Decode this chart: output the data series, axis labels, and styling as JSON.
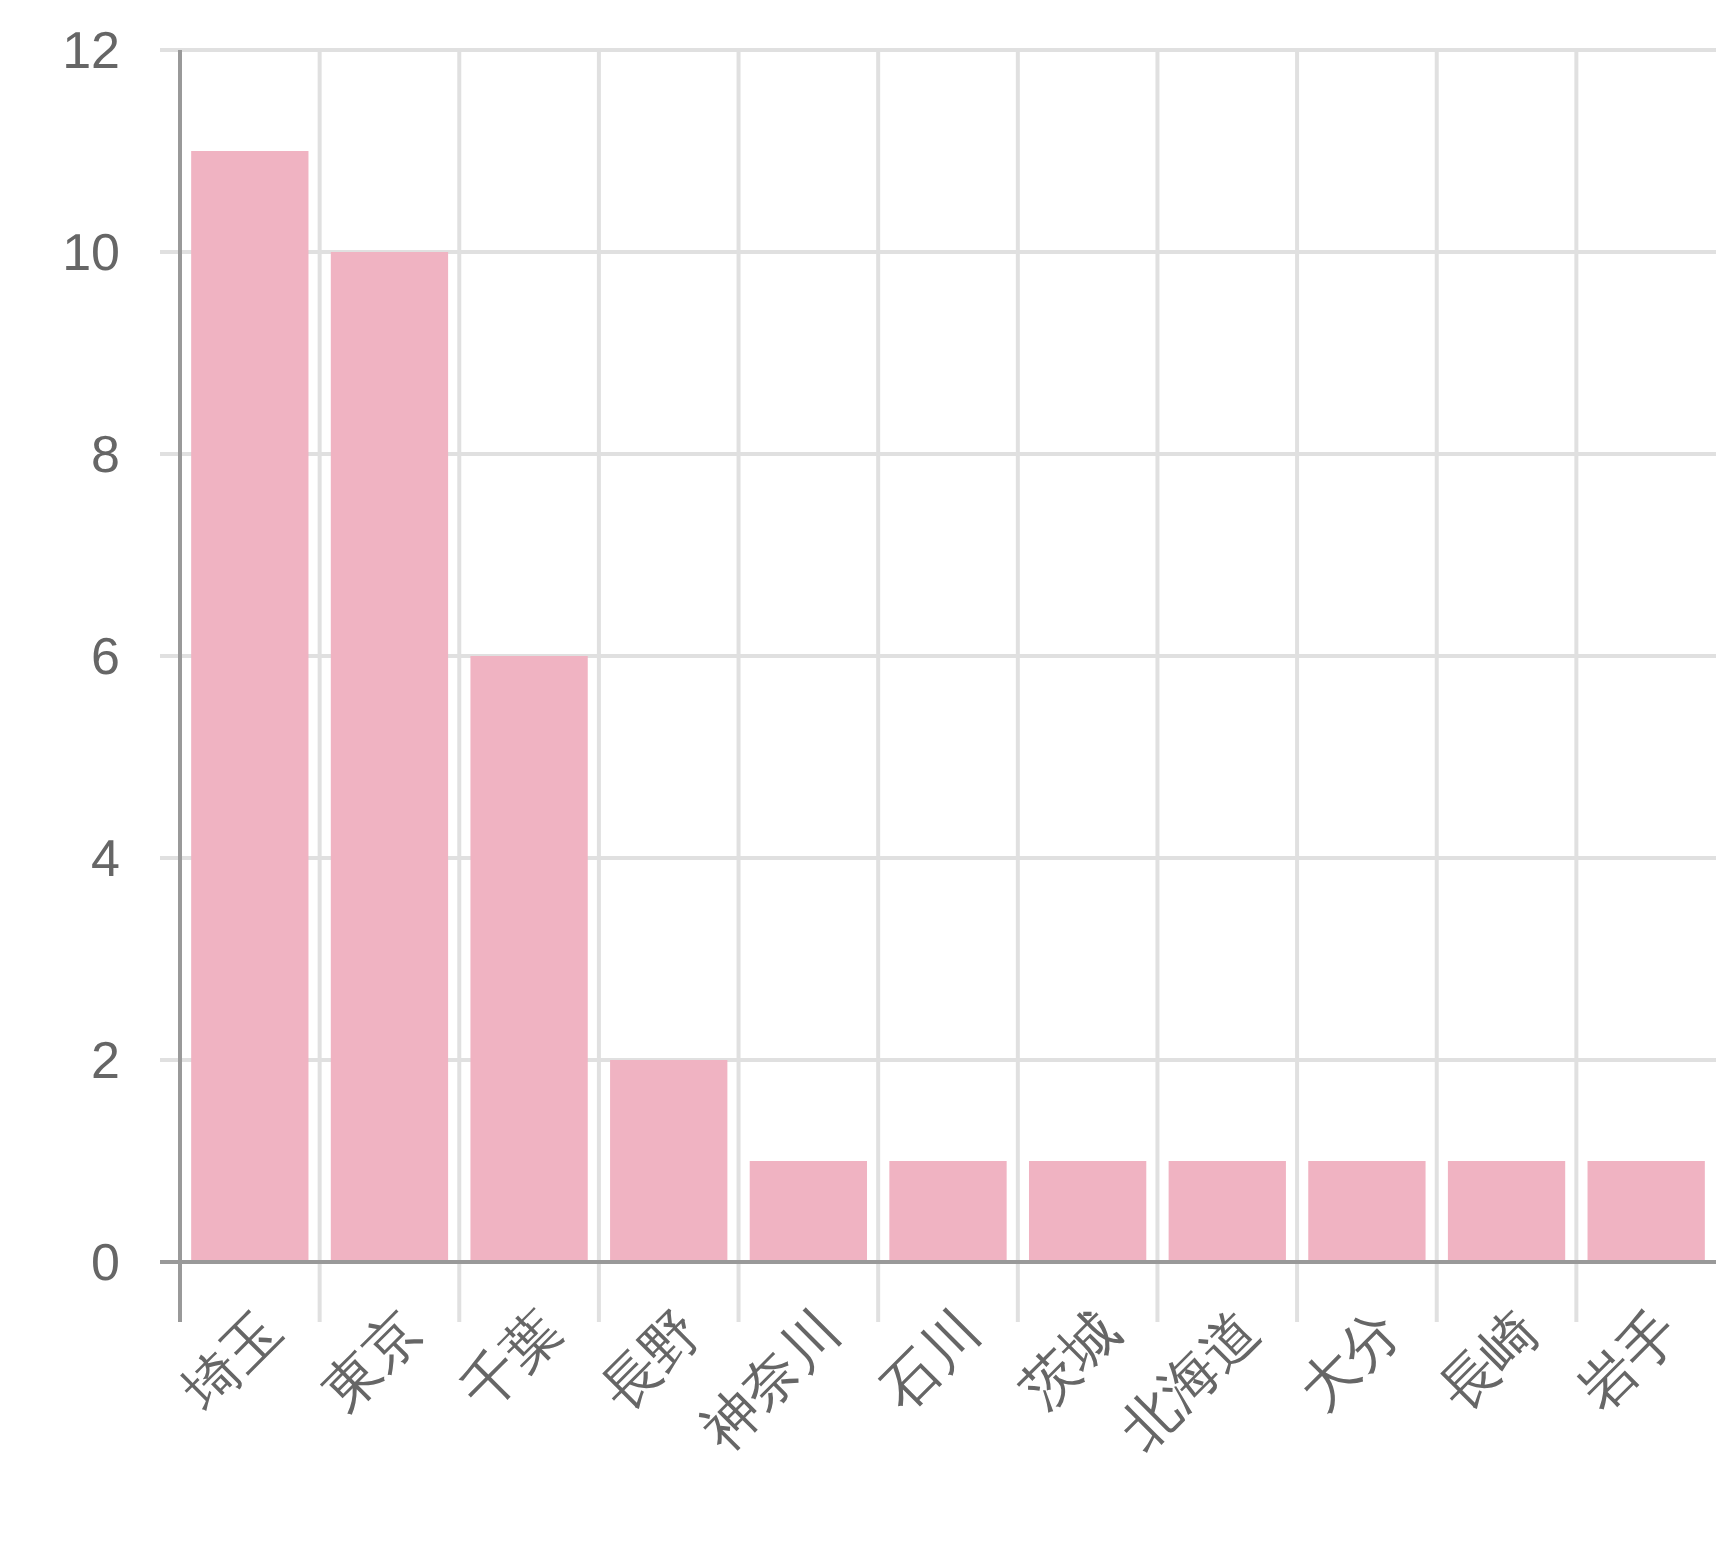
{
  "chart_data": {
    "type": "bar",
    "categories": [
      "埼玉",
      "東京",
      "千葉",
      "長野",
      "神奈川",
      "石川",
      "茨城",
      "北海道",
      "大分",
      "長崎",
      "岩手"
    ],
    "values": [
      11,
      10,
      6,
      2,
      1,
      1,
      1,
      1,
      1,
      1,
      1
    ],
    "color": "#f0b3c2",
    "ylim": [
      0,
      12
    ],
    "yticks": [
      0,
      2,
      4,
      6,
      8,
      10,
      12
    ],
    "grid": true
  }
}
